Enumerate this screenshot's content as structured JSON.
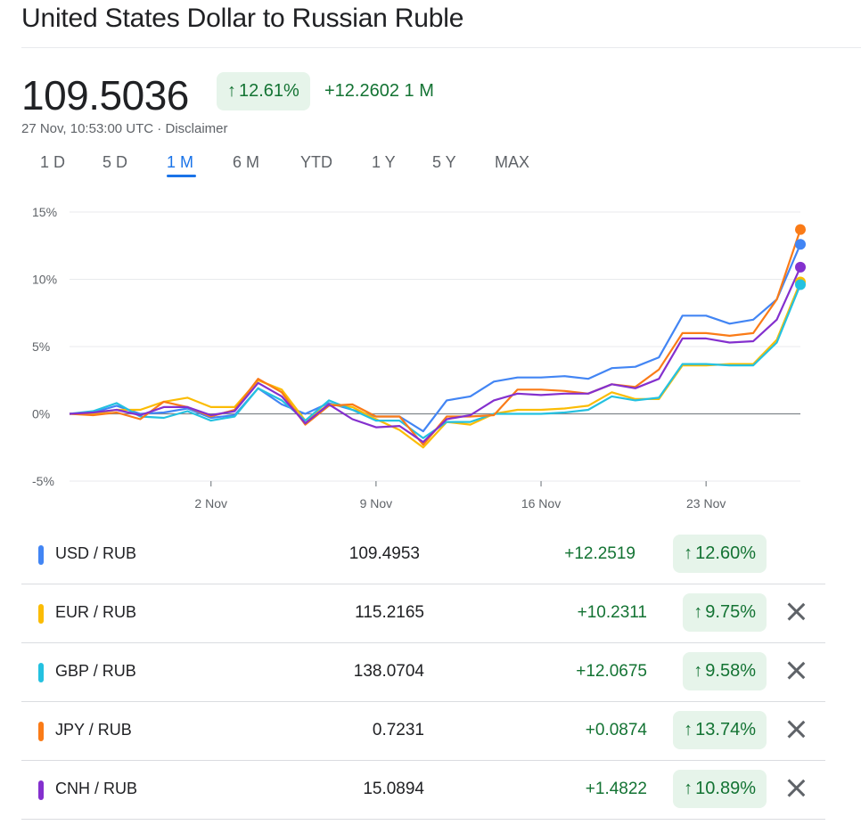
{
  "title": "United States Dollar to Russian Ruble",
  "price": "109.5036",
  "percent_change": "12.61%",
  "abs_change": "+12.2602 1 M",
  "timestamp": "27 Nov, 10:53:00 UTC",
  "separator": " · ",
  "disclaimer": "Disclaimer",
  "arrow": "↑",
  "tabs": [
    "1 D",
    "5 D",
    "1 M",
    "6 M",
    "YTD",
    "1 Y",
    "5 Y",
    "MAX"
  ],
  "active_tab": "1 M",
  "colors": {
    "up_green": "#137333",
    "up_bg": "#e6f4ea",
    "accent": "#1a73e8"
  },
  "chart_data": {
    "type": "line",
    "y_unit": "%",
    "ylim": [
      -5,
      15
    ],
    "y_ticks": [
      15,
      10,
      5,
      0,
      -5
    ],
    "y_tick_labels": [
      "15%",
      "10%",
      "5%",
      "0%",
      "-5%"
    ],
    "x": [
      "27 Oct",
      "28 Oct",
      "29 Oct",
      "30 Oct",
      "31 Oct",
      "1 Nov",
      "2 Nov",
      "3 Nov",
      "4 Nov",
      "5 Nov",
      "6 Nov",
      "7 Nov",
      "8 Nov",
      "9 Nov",
      "10 Nov",
      "11 Nov",
      "12 Nov",
      "13 Nov",
      "14 Nov",
      "15 Nov",
      "16 Nov",
      "17 Nov",
      "18 Nov",
      "19 Nov",
      "20 Nov",
      "21 Nov",
      "22 Nov",
      "23 Nov",
      "24 Nov",
      "25 Nov",
      "26 Nov",
      "27 Nov"
    ],
    "x_tick_labels": [
      {
        "at": "2 Nov",
        "label": "2 Nov"
      },
      {
        "at": "9 Nov",
        "label": "9 Nov"
      },
      {
        "at": "16 Nov",
        "label": "16 Nov"
      },
      {
        "at": "23 Nov",
        "label": "23 Nov"
      }
    ],
    "grid": true,
    "series": [
      {
        "name": "USD / RUB",
        "color": "#4285f4",
        "values": [
          0,
          0.1,
          0.6,
          0,
          0.1,
          0.4,
          -0.3,
          -0.1,
          1.9,
          0.7,
          0,
          0.8,
          0.3,
          -0.2,
          -0.2,
          -1.3,
          1.0,
          1.3,
          2.4,
          2.7,
          2.7,
          2.8,
          2.6,
          3.4,
          3.5,
          4.2,
          7.3,
          7.3,
          6.7,
          7.0,
          8.5,
          12.6
        ]
      },
      {
        "name": "EUR / RUB",
        "color": "#fbbc04",
        "values": [
          0,
          0,
          0.3,
          0.3,
          0.9,
          1.2,
          0.5,
          0.5,
          2.5,
          1.8,
          -0.5,
          0.7,
          0.5,
          -0.4,
          -1.2,
          -2.5,
          -0.6,
          -0.8,
          0,
          0.3,
          0.3,
          0.4,
          0.6,
          1.6,
          1.1,
          1.1,
          3.6,
          3.6,
          3.7,
          3.7,
          5.5,
          9.8
        ]
      },
      {
        "name": "GBP / RUB",
        "color": "#24c1e0",
        "values": [
          0,
          0.2,
          0.8,
          -0.2,
          -0.3,
          0.2,
          -0.5,
          -0.2,
          1.9,
          1.0,
          -0.5,
          1.0,
          0.3,
          -0.5,
          -0.5,
          -1.8,
          -0.6,
          -0.6,
          0,
          0,
          0,
          0.1,
          0.3,
          1.3,
          1.0,
          1.2,
          3.7,
          3.7,
          3.6,
          3.6,
          5.3,
          9.6
        ]
      },
      {
        "name": "JPY / RUB",
        "color": "#fa7b17",
        "values": [
          0,
          -0.1,
          0.1,
          -0.4,
          0.9,
          0.5,
          -0.2,
          0.3,
          2.6,
          1.6,
          -0.8,
          0.6,
          0.7,
          -0.2,
          -0.2,
          -2.3,
          -0.2,
          -0.2,
          -0.1,
          1.8,
          1.8,
          1.7,
          1.5,
          2.2,
          2.0,
          3.3,
          6.0,
          6.0,
          5.8,
          6.0,
          8.5,
          13.7
        ]
      },
      {
        "name": "CNH / RUB",
        "color": "#8430ce",
        "values": [
          0,
          0.1,
          0.3,
          -0.1,
          0.5,
          0.5,
          -0.1,
          0.2,
          2.3,
          1.3,
          -0.7,
          0.7,
          -0.4,
          -1.0,
          -0.9,
          -2.1,
          -0.4,
          -0.1,
          1.0,
          1.5,
          1.4,
          1.5,
          1.5,
          2.2,
          1.9,
          2.6,
          5.6,
          5.6,
          5.3,
          5.4,
          7.0,
          10.9
        ]
      }
    ]
  },
  "comparisons": [
    {
      "pair": "USD / RUB",
      "color": "#4285f4",
      "value": "109.4953",
      "change": "+12.2519",
      "percent": "12.60%",
      "removable": false
    },
    {
      "pair": "EUR / RUB",
      "color": "#fbbc04",
      "value": "115.2165",
      "change": "+10.2311",
      "percent": "9.75%",
      "removable": true
    },
    {
      "pair": "GBP / RUB",
      "color": "#24c1e0",
      "value": "138.0704",
      "change": "+12.0675",
      "percent": "9.58%",
      "removable": true
    },
    {
      "pair": "JPY / RUB",
      "color": "#fa7b17",
      "value": "0.7231",
      "change": "+0.0874",
      "percent": "13.74%",
      "removable": true
    },
    {
      "pair": "CNH / RUB",
      "color": "#8430ce",
      "value": "15.0894",
      "change": "+1.4822",
      "percent": "10.89%",
      "removable": true
    }
  ]
}
